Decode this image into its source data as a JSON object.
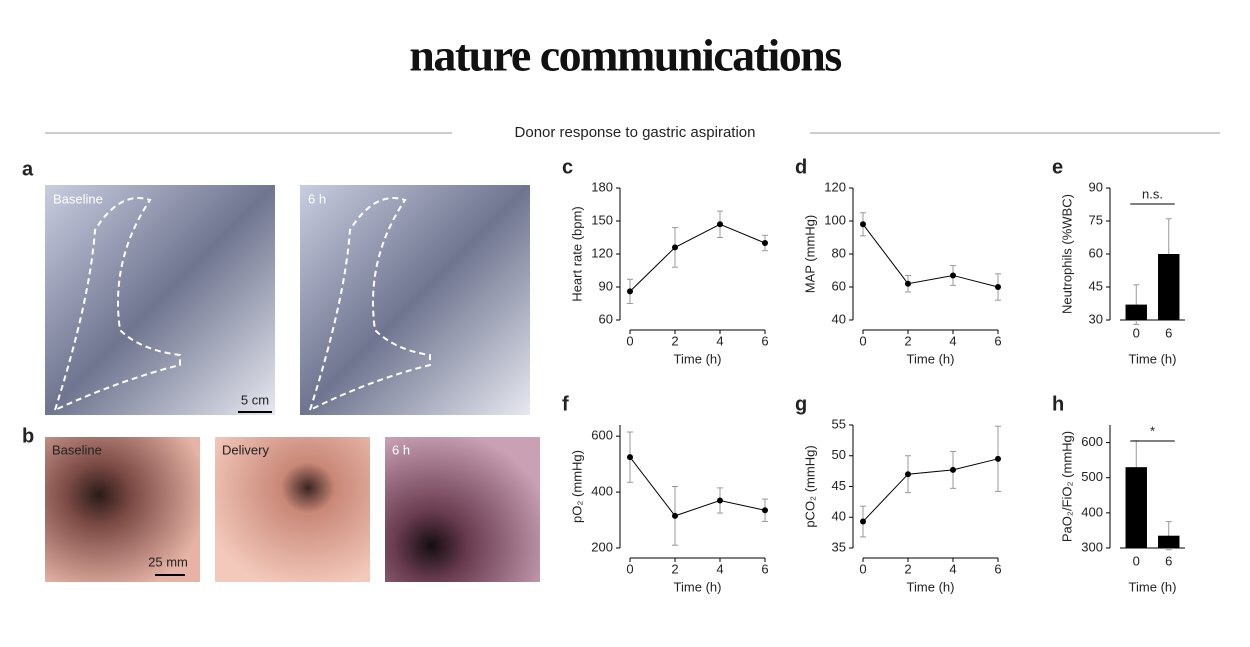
{
  "header": {
    "title": "nature communications",
    "subtitle": "Donor response to gastric aspiration"
  },
  "panels": {
    "a": {
      "label": "a",
      "images": [
        {
          "label": "Baseline"
        },
        {
          "label": "6 h"
        }
      ],
      "scale_bar": "5 cm"
    },
    "b": {
      "label": "b",
      "images": [
        {
          "label": "Baseline"
        },
        {
          "label": "Delivery"
        },
        {
          "label": "6 h"
        }
      ],
      "scale_bar": "25 mm"
    }
  },
  "chart_data": [
    {
      "type": "line",
      "panel_label": "c",
      "ylabel": "Heart rate (bpm)",
      "xlabel": "Time (h)",
      "color": "#000000",
      "x": [
        0,
        2,
        4,
        6
      ],
      "values": [
        86,
        126,
        147,
        130
      ],
      "errors": [
        11,
        18,
        12,
        7
      ],
      "xlim": [
        0,
        6
      ],
      "xticks": [
        0,
        2,
        4,
        6
      ],
      "ylim": [
        60,
        180
      ],
      "yticks": [
        60,
        90,
        120,
        150,
        180
      ]
    },
    {
      "type": "line",
      "panel_label": "d",
      "ylabel": "MAP (mmHg)",
      "xlabel": "Time (h)",
      "color": "#000000",
      "x": [
        0,
        2,
        4,
        6
      ],
      "values": [
        98,
        62,
        67,
        60
      ],
      "errors": [
        7,
        5,
        6,
        8
      ],
      "xlim": [
        0,
        6
      ],
      "xticks": [
        0,
        2,
        4,
        6
      ],
      "ylim": [
        40,
        120
      ],
      "yticks": [
        40,
        60,
        80,
        100,
        120
      ]
    },
    {
      "type": "bar",
      "panel_label": "e",
      "ylabel": "Neutrophils (%WBC)",
      "xlabel": "Time (h)",
      "color": "#000000",
      "categories": [
        "0",
        "6"
      ],
      "values": [
        37,
        60
      ],
      "errors": [
        9,
        16
      ],
      "annotation": "n.s.",
      "ylim": [
        30,
        90
      ],
      "yticks": [
        30,
        45,
        60,
        75,
        90
      ]
    },
    {
      "type": "line",
      "panel_label": "f",
      "ylabel": "pO₂ (mmHg)",
      "xlabel": "Time (h)",
      "color": "#000000",
      "x": [
        0,
        2,
        4,
        6
      ],
      "values": [
        525,
        315,
        370,
        335
      ],
      "errors": [
        90,
        105,
        45,
        40
      ],
      "xlim": [
        0,
        6
      ],
      "xticks": [
        0,
        2,
        4,
        6
      ],
      "ylim": [
        200,
        640
      ],
      "yticks": [
        200,
        400,
        600
      ]
    },
    {
      "type": "line",
      "panel_label": "g",
      "ylabel": "pCO₂ (mmHg)",
      "xlabel": "Time (h)",
      "color": "#000000",
      "x": [
        0,
        2,
        4,
        6
      ],
      "values": [
        39.3,
        47,
        47.7,
        49.5
      ],
      "errors": [
        2.5,
        3,
        3,
        5.3
      ],
      "xlim": [
        0,
        6
      ],
      "xticks": [
        0,
        2,
        4,
        6
      ],
      "ylim": [
        35,
        55
      ],
      "yticks": [
        35,
        40,
        45,
        50,
        55
      ]
    },
    {
      "type": "bar",
      "panel_label": "h",
      "ylabel": "PaO₂/FiO₂ (mmHg)",
      "xlabel": "Time (h)",
      "color": "#000000",
      "categories": [
        "0",
        "6"
      ],
      "values": [
        530,
        335
      ],
      "errors": [
        75,
        40
      ],
      "annotation": "*",
      "ylim": [
        300,
        650
      ],
      "yticks": [
        300,
        400,
        500,
        600
      ]
    }
  ]
}
